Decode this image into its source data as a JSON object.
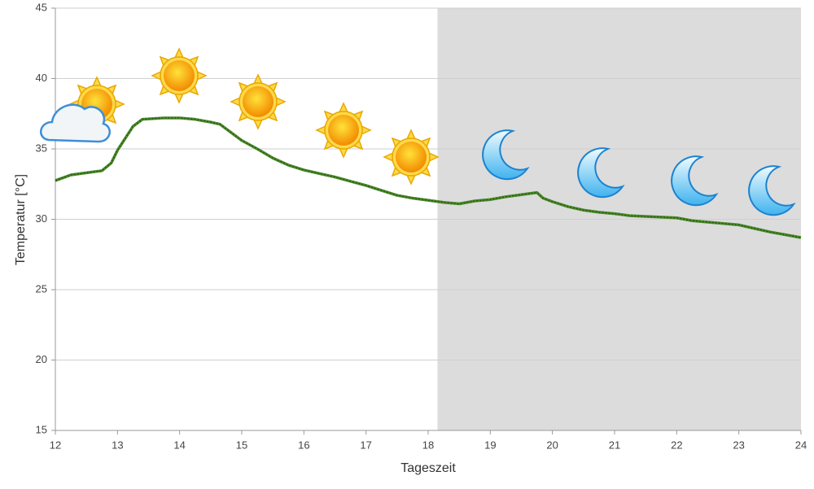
{
  "chart_data": {
    "type": "line",
    "x_label": "Tageszeit",
    "y_label": "Temperatur [°C]",
    "x": [
      12,
      12.25,
      12.5,
      12.75,
      12.9,
      13,
      13.25,
      13.4,
      13.75,
      14,
      14.25,
      14.5,
      14.65,
      15,
      15.25,
      15.5,
      15.75,
      16,
      16.25,
      16.5,
      16.75,
      17,
      17.25,
      17.5,
      17.75,
      18,
      18.25,
      18.5,
      18.75,
      19,
      19.25,
      19.5,
      19.75,
      19.85,
      20,
      20.25,
      20.5,
      20.75,
      21,
      21.25,
      21.5,
      21.75,
      22,
      22.25,
      22.5,
      22.75,
      23,
      23.25,
      23.5,
      23.75,
      24
    ],
    "series": [
      {
        "color": "#4b8a2a",
        "values": [
          32.75,
          33.15,
          33.3,
          33.45,
          34.0,
          34.9,
          36.6,
          37.1,
          37.2,
          37.2,
          37.1,
          36.9,
          36.75,
          35.6,
          35.0,
          34.35,
          33.85,
          33.5,
          33.25,
          33.0,
          32.7,
          32.4,
          32.05,
          31.7,
          31.5,
          31.35,
          31.2,
          31.1,
          31.3,
          31.4,
          31.6,
          31.75,
          31.9,
          31.5,
          31.25,
          30.9,
          30.65,
          30.5,
          30.4,
          30.25,
          30.2,
          30.15,
          30.1,
          29.9,
          29.8,
          29.7,
          29.6,
          29.35,
          29.1,
          28.9,
          28.7
        ]
      }
    ],
    "night_range": [
      18.15,
      24
    ],
    "night_color": "#dcdcdc",
    "xlim": [
      12,
      24
    ],
    "xticks": [
      12,
      13,
      14,
      15,
      16,
      17,
      18,
      19,
      20,
      21,
      22,
      23,
      24
    ],
    "ylim": [
      15,
      45
    ],
    "yticks": [
      15,
      20,
      25,
      30,
      35,
      40,
      45
    ],
    "grid": true
  }
}
